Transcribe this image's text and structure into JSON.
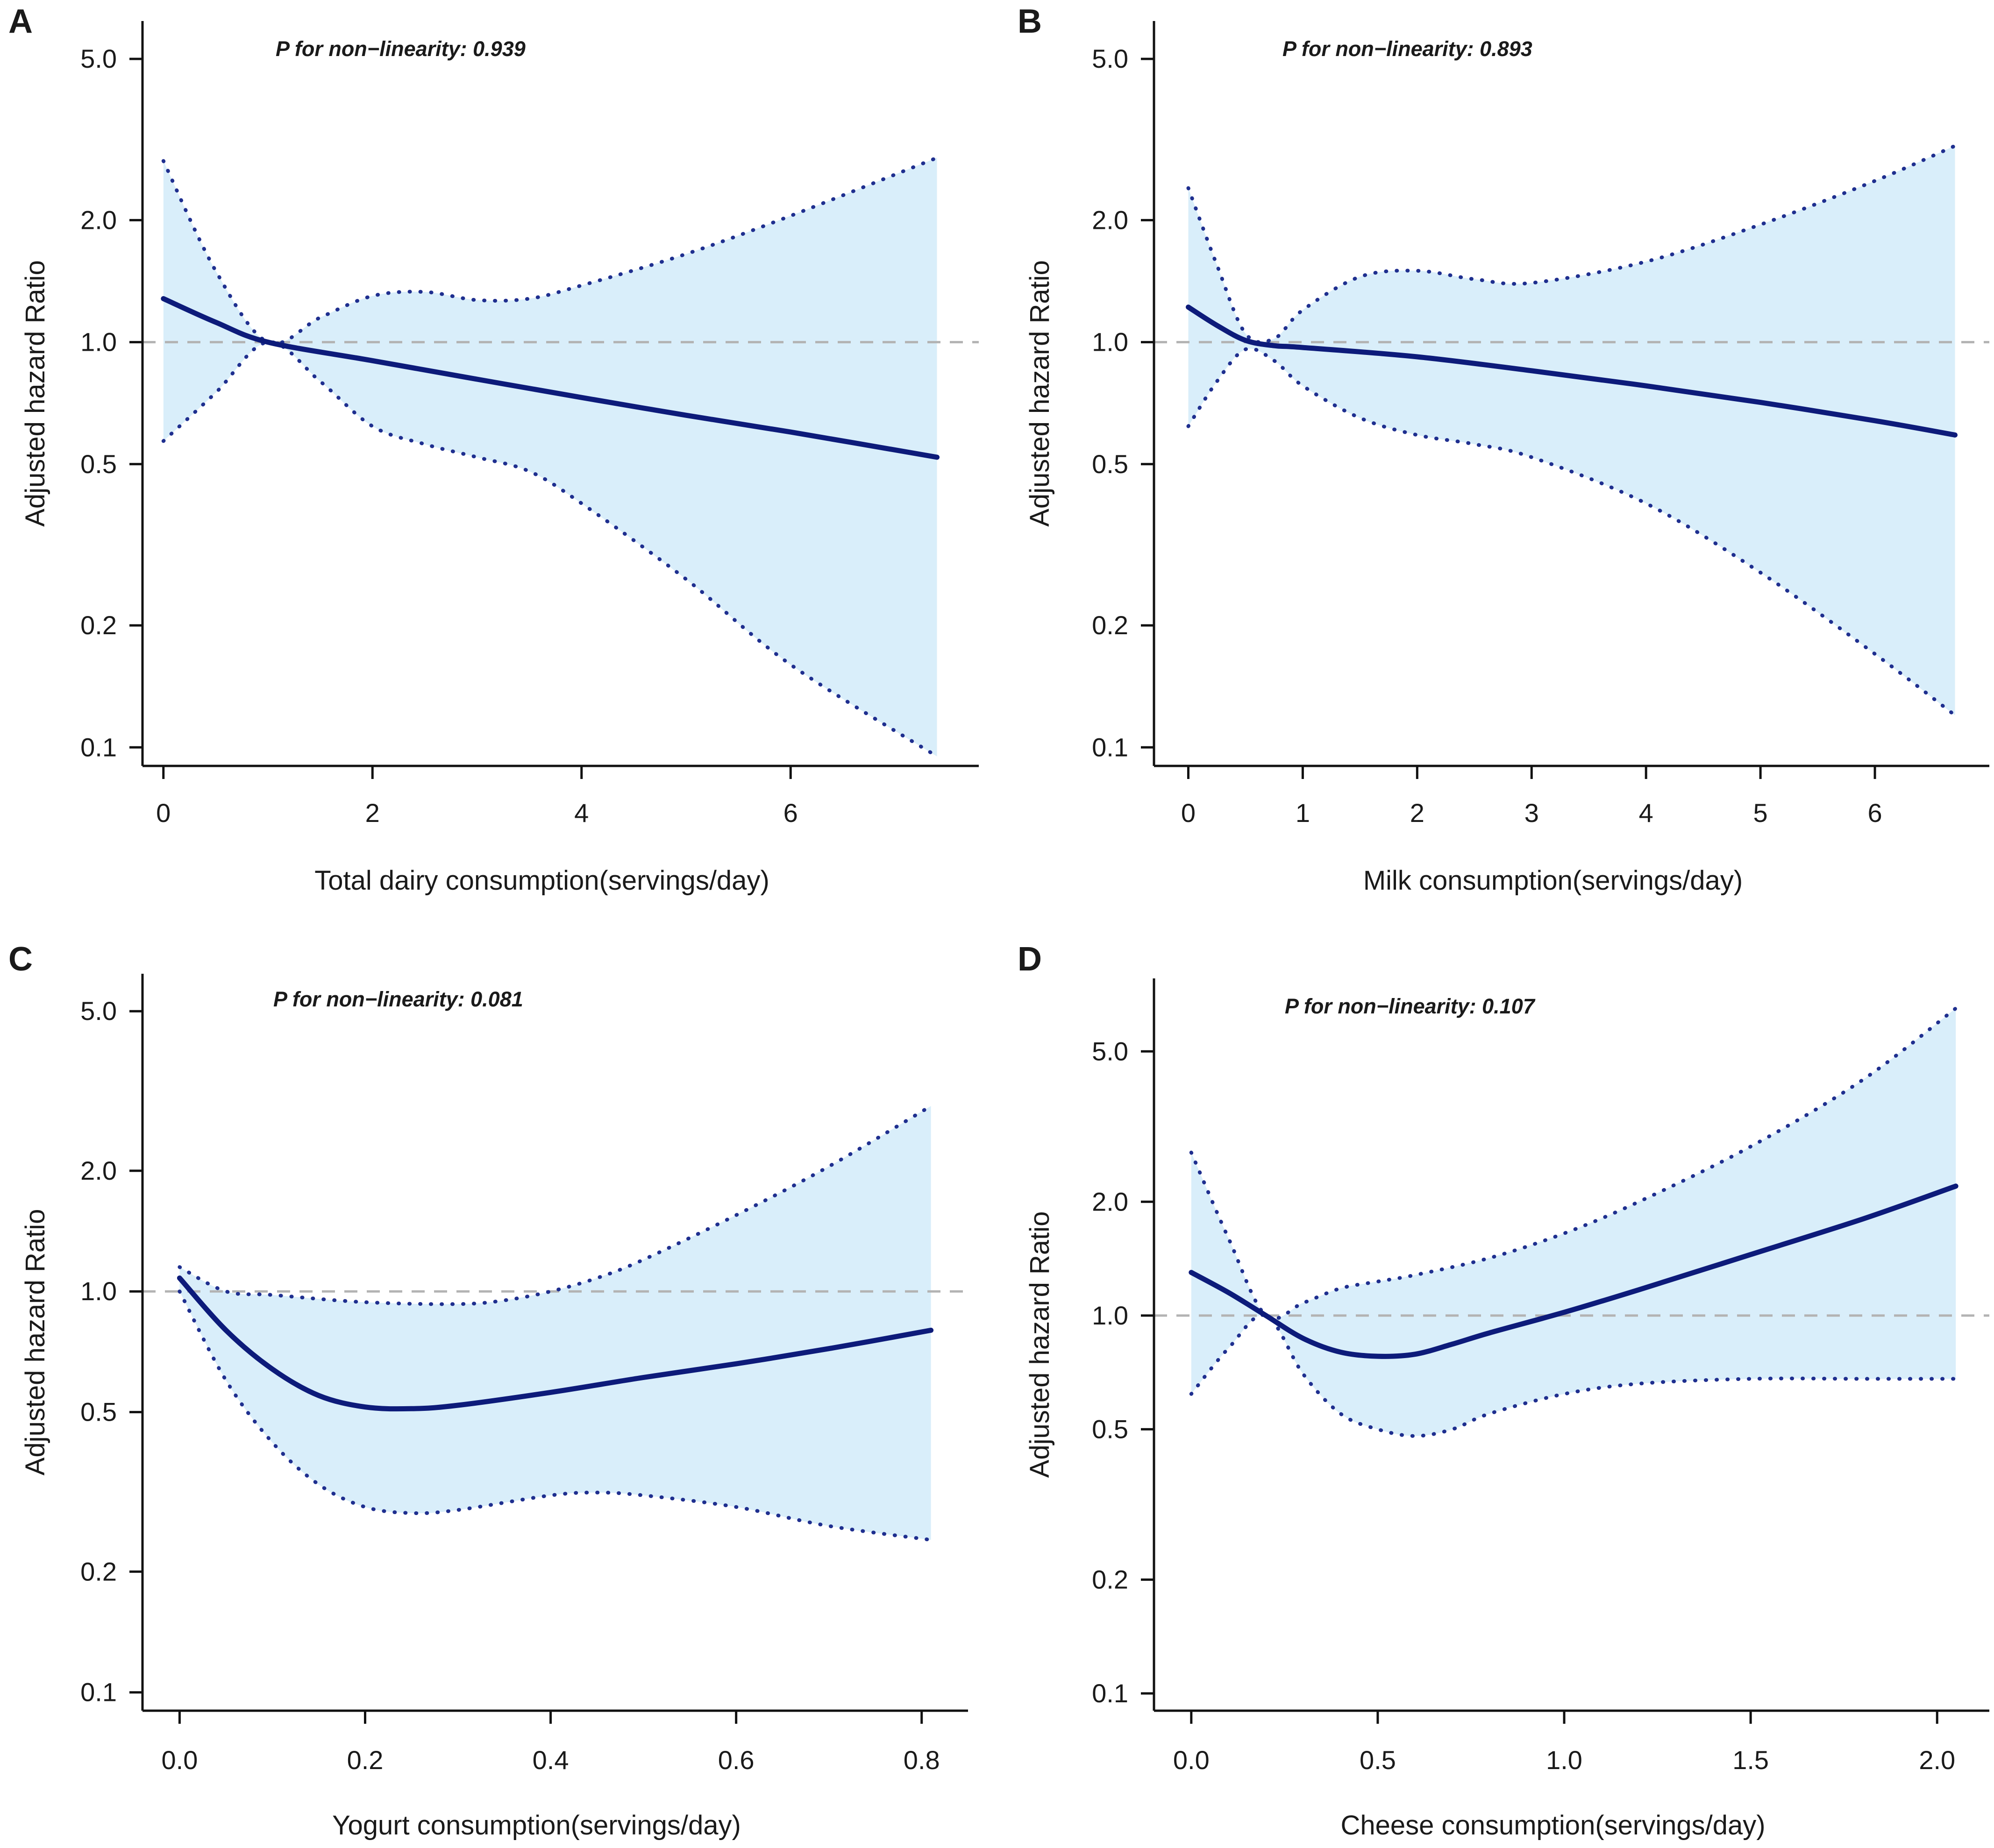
{
  "figure": {
    "colors": {
      "estimate": "#0d1b7a",
      "ci_fill": "#d9eefa",
      "ci_line": "#1f2f8f",
      "reference": "#b3b3b3"
    }
  },
  "chart_data": [
    {
      "panel": "A",
      "type": "line",
      "annotation": "P for non−linearity: 0.939",
      "xlabel": "Total dairy consumption(servings/day)",
      "ylabel": "Adjusted hazard Ratio",
      "yscale": "log",
      "xlim": [
        -0.2,
        7.8
      ],
      "ylim": [
        0.09,
        6.2
      ],
      "xticks": [
        0,
        2,
        4,
        6
      ],
      "xtick_labels": [
        "0",
        "2",
        "4",
        "6"
      ],
      "yticks": [
        0.1,
        0.2,
        0.5,
        1.0,
        2.0,
        5.0
      ],
      "ytick_labels": [
        "0.1",
        "0.2",
        "0.5",
        "1.0",
        "2.0",
        "5.0"
      ],
      "reference_y": 1.0,
      "series": [
        {
          "name": "Estimate",
          "style": "solid",
          "x": [
            0,
            0.5,
            1.0,
            2.0,
            3.0,
            4.0,
            5.0,
            6.0,
            7.4
          ],
          "y": [
            1.28,
            1.12,
            1.0,
            0.9,
            0.81,
            0.73,
            0.66,
            0.6,
            0.52
          ]
        },
        {
          "name": "Upper 95% CI",
          "style": "dotted",
          "x": [
            0,
            0.5,
            1.0,
            1.5,
            2.0,
            2.5,
            3.0,
            3.5,
            4.0,
            5.0,
            6.0,
            7.4
          ],
          "y": [
            2.8,
            1.5,
            1.0,
            1.15,
            1.3,
            1.33,
            1.27,
            1.28,
            1.38,
            1.65,
            2.05,
            2.85
          ]
        },
        {
          "name": "Lower 95% CI",
          "style": "dotted",
          "x": [
            0,
            0.5,
            1.0,
            1.5,
            2.0,
            2.5,
            3.0,
            3.5,
            4.0,
            5.0,
            6.0,
            7.4
          ],
          "y": [
            0.57,
            0.75,
            1.0,
            0.8,
            0.62,
            0.56,
            0.52,
            0.48,
            0.4,
            0.26,
            0.16,
            0.095
          ]
        }
      ]
    },
    {
      "panel": "B",
      "type": "line",
      "annotation": "P for non−linearity: 0.893",
      "xlabel": "Milk consumption(servings/day)",
      "ylabel": "Adjusted hazard Ratio",
      "yscale": "log",
      "xlim": [
        -0.3,
        7.0
      ],
      "ylim": [
        0.09,
        6.2
      ],
      "xticks": [
        0,
        1,
        2,
        3,
        4,
        5,
        6
      ],
      "xtick_labels": [
        "0",
        "1",
        "2",
        "3",
        "4",
        "5",
        "6"
      ],
      "yticks": [
        0.1,
        0.2,
        0.5,
        1.0,
        2.0,
        5.0
      ],
      "ytick_labels": [
        "0.1",
        "0.2",
        "0.5",
        "1.0",
        "2.0",
        "5.0"
      ],
      "reference_y": 1.0,
      "series": [
        {
          "name": "Estimate",
          "style": "solid",
          "x": [
            0,
            0.25,
            0.5,
            0.75,
            1.0,
            2.0,
            3.0,
            4.0,
            5.0,
            6.0,
            6.7
          ],
          "y": [
            1.22,
            1.1,
            1.01,
            0.98,
            0.97,
            0.92,
            0.85,
            0.78,
            0.71,
            0.64,
            0.59
          ]
        },
        {
          "name": "Upper 95% CI",
          "style": "dotted",
          "x": [
            0,
            0.25,
            0.5,
            0.75,
            1.0,
            1.5,
            2.0,
            2.5,
            3.0,
            4.0,
            5.0,
            6.0,
            6.7
          ],
          "y": [
            2.4,
            1.55,
            1.05,
            1.02,
            1.2,
            1.45,
            1.5,
            1.43,
            1.4,
            1.58,
            1.95,
            2.5,
            3.05
          ]
        },
        {
          "name": "Lower 95% CI",
          "style": "dotted",
          "x": [
            0,
            0.25,
            0.5,
            0.75,
            1.0,
            1.5,
            2.0,
            2.5,
            3.0,
            4.0,
            5.0,
            6.0,
            6.7
          ],
          "y": [
            0.62,
            0.8,
            0.96,
            0.9,
            0.78,
            0.65,
            0.59,
            0.56,
            0.52,
            0.4,
            0.27,
            0.17,
            0.12
          ]
        }
      ]
    },
    {
      "panel": "C",
      "type": "line",
      "annotation": "P for non−linearity: 0.081",
      "xlabel": "Yogurt consumption(servings/day)",
      "ylabel": "Adjusted hazard Ratio",
      "yscale": "log",
      "xlim": [
        -0.04,
        0.85
      ],
      "ylim": [
        0.09,
        6.2
      ],
      "xticks": [
        0.0,
        0.2,
        0.4,
        0.6,
        0.8
      ],
      "xtick_labels": [
        "0.0",
        "0.2",
        "0.4",
        "0.6",
        "0.8"
      ],
      "yticks": [
        0.1,
        0.2,
        0.5,
        1.0,
        2.0,
        5.0
      ],
      "ytick_labels": [
        "0.1",
        "0.2",
        "0.5",
        "1.0",
        "2.0",
        "5.0"
      ],
      "reference_y": 1.0,
      "series": [
        {
          "name": "Estimate",
          "style": "solid",
          "x": [
            0.0,
            0.05,
            0.1,
            0.15,
            0.2,
            0.25,
            0.3,
            0.4,
            0.5,
            0.6,
            0.7,
            0.81
          ],
          "y": [
            1.08,
            0.8,
            0.64,
            0.55,
            0.515,
            0.51,
            0.52,
            0.56,
            0.61,
            0.66,
            0.72,
            0.8
          ]
        },
        {
          "name": "Upper 95% CI",
          "style": "dotted",
          "x": [
            0.0,
            0.05,
            0.1,
            0.2,
            0.3,
            0.35,
            0.4,
            0.45,
            0.5,
            0.6,
            0.7,
            0.81
          ],
          "y": [
            1.15,
            1.0,
            0.98,
            0.94,
            0.93,
            0.95,
            1.0,
            1.08,
            1.2,
            1.55,
            2.05,
            2.9
          ]
        },
        {
          "name": "Lower 95% CI",
          "style": "dotted",
          "x": [
            0.0,
            0.05,
            0.1,
            0.15,
            0.2,
            0.25,
            0.3,
            0.4,
            0.45,
            0.5,
            0.6,
            0.7,
            0.81
          ],
          "y": [
            1.0,
            0.6,
            0.42,
            0.33,
            0.29,
            0.28,
            0.285,
            0.31,
            0.315,
            0.31,
            0.29,
            0.26,
            0.24
          ]
        }
      ]
    },
    {
      "panel": "D",
      "type": "line",
      "annotation": "P for non−linearity: 0.107",
      "xlabel": "Cheese consumption(servings/day)",
      "ylabel": "Adjusted hazard Ratio",
      "yscale": "log",
      "xlim": [
        -0.1,
        2.14
      ],
      "ylim": [
        0.09,
        7.8
      ],
      "xticks": [
        0.0,
        0.5,
        1.0,
        1.5,
        2.0
      ],
      "xtick_labels": [
        "0.0",
        "0.5",
        "1.0",
        "1.5",
        "2.0"
      ],
      "yticks": [
        0.1,
        0.2,
        0.5,
        1.0,
        2.0,
        5.0
      ],
      "ytick_labels": [
        "0.1",
        "0.2",
        "0.5",
        "1.0",
        "2.0",
        "5.0"
      ],
      "reference_y": 1.0,
      "series": [
        {
          "name": "Estimate",
          "style": "solid",
          "x": [
            0.0,
            0.1,
            0.2,
            0.3,
            0.4,
            0.5,
            0.6,
            0.7,
            0.8,
            1.0,
            1.2,
            1.5,
            1.8,
            2.05
          ],
          "y": [
            1.3,
            1.15,
            1.0,
            0.87,
            0.8,
            0.78,
            0.79,
            0.84,
            0.9,
            1.02,
            1.17,
            1.45,
            1.8,
            2.2
          ]
        },
        {
          "name": "Upper 95% CI",
          "style": "dotted",
          "x": [
            0.0,
            0.1,
            0.2,
            0.3,
            0.4,
            0.5,
            0.6,
            0.8,
            1.0,
            1.2,
            1.5,
            1.8,
            2.05
          ],
          "y": [
            2.7,
            1.6,
            1.0,
            1.08,
            1.18,
            1.23,
            1.28,
            1.42,
            1.65,
            2.0,
            2.8,
            4.2,
            6.5
          ]
        },
        {
          "name": "Lower 95% CI",
          "style": "dotted",
          "x": [
            0.0,
            0.1,
            0.2,
            0.3,
            0.4,
            0.5,
            0.6,
            0.7,
            0.8,
            1.0,
            1.2,
            1.5,
            1.8,
            2.05
          ],
          "y": [
            0.62,
            0.82,
            1.0,
            0.7,
            0.55,
            0.5,
            0.48,
            0.5,
            0.55,
            0.62,
            0.66,
            0.68,
            0.68,
            0.68
          ]
        }
      ]
    }
  ]
}
